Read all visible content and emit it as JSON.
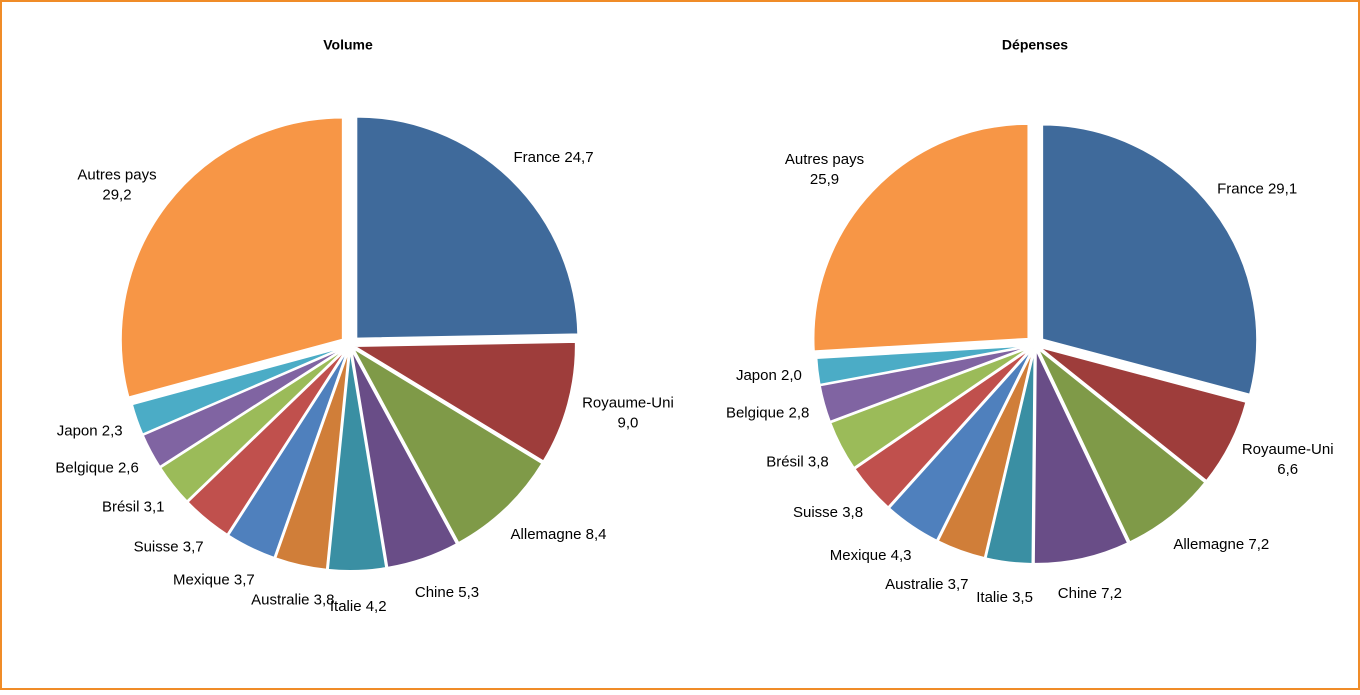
{
  "chart_data": [
    {
      "type": "pie",
      "title": "Volume",
      "categories": [
        "France",
        "Royaume-Uni",
        "Allemagne",
        "Chine",
        "Italie",
        "Australie",
        "Mexique",
        "Suisse",
        "Brésil",
        "Belgique",
        "Japon",
        "Autres pays"
      ],
      "values": [
        24.7,
        9.0,
        8.4,
        5.3,
        4.2,
        3.8,
        3.7,
        3.7,
        3.1,
        2.6,
        2.3,
        29.2
      ],
      "value_labels": [
        "24,7",
        "9,0",
        "8,4",
        "5,3",
        "4,2",
        "3,8",
        "3,7",
        "3,7",
        "3,1",
        "2,6",
        "2,3",
        "29,2"
      ],
      "colors": [
        "#3f6a9b",
        "#9e3d3b",
        "#7f9a48",
        "#694d87",
        "#3a8fa3",
        "#d07e39",
        "#4f80bd",
        "#c0504d",
        "#9bbb59",
        "#8064a2",
        "#4bacc6",
        "#f79646"
      ]
    },
    {
      "type": "pie",
      "title": "Dépenses",
      "categories": [
        "France",
        "Royaume-Uni",
        "Allemagne",
        "Chine",
        "Italie",
        "Australie",
        "Mexique",
        "Suisse",
        "Brésil",
        "Belgique",
        "Japon",
        "Autres pays"
      ],
      "values": [
        29.1,
        6.6,
        7.2,
        7.2,
        3.5,
        3.7,
        4.3,
        3.8,
        3.8,
        2.8,
        2.0,
        25.9
      ],
      "value_labels": [
        "29,1",
        "6,6",
        "7,2",
        "7,2",
        "3,5",
        "3,7",
        "4,3",
        "3,8",
        "3,8",
        "2,8",
        "2,0",
        "25,9"
      ],
      "colors": [
        "#3f6a9b",
        "#9e3d3b",
        "#7f9a48",
        "#694d87",
        "#3a8fa3",
        "#d07e39",
        "#4f80bd",
        "#c0504d",
        "#9bbb59",
        "#8064a2",
        "#4bacc6",
        "#f79646"
      ]
    }
  ]
}
